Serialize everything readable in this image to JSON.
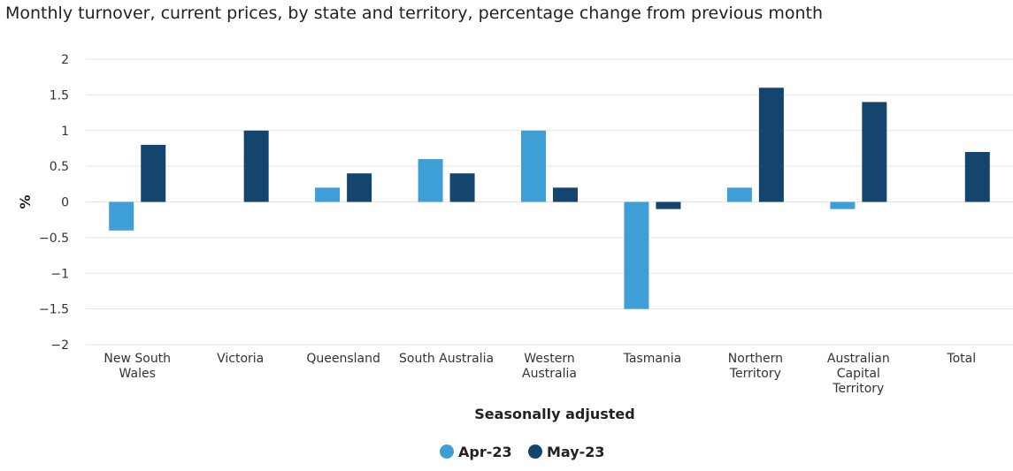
{
  "chart_data": {
    "type": "bar",
    "title": "Monthly turnover, current prices, by state and territory, percentage change from previous month",
    "xlabel": "Seasonally adjusted",
    "ylabel": "%",
    "ylim": [
      -2,
      2
    ],
    "yticks": [
      2,
      1.5,
      1,
      0.5,
      0,
      -0.5,
      -1,
      -1.5,
      -2
    ],
    "ytick_labels": [
      "2",
      "1.5",
      "1",
      "0.5",
      "0",
      "−0.5",
      "−1",
      "−1.5",
      "−2"
    ],
    "categories": [
      [
        "New South",
        "Wales"
      ],
      [
        "Victoria"
      ],
      [
        "Queensland"
      ],
      [
        "South Australia"
      ],
      [
        "Western",
        "Australia"
      ],
      [
        "Tasmania"
      ],
      [
        "Northern",
        "Territory"
      ],
      [
        "Australian",
        "Capital",
        "Territory"
      ],
      [
        "Total"
      ]
    ],
    "series": [
      {
        "name": "Apr‑23",
        "color": "#3d9fd6",
        "values": [
          -0.4,
          0,
          0.2,
          0.6,
          1.0,
          -1.5,
          0.2,
          -0.1,
          0
        ]
      },
      {
        "name": "May‑23",
        "color": "#14456e",
        "values": [
          0.8,
          1.0,
          0.4,
          0.4,
          0.2,
          -0.1,
          1.6,
          1.4,
          0.7
        ]
      }
    ],
    "grid": true,
    "legend_position": "bottom-center"
  }
}
